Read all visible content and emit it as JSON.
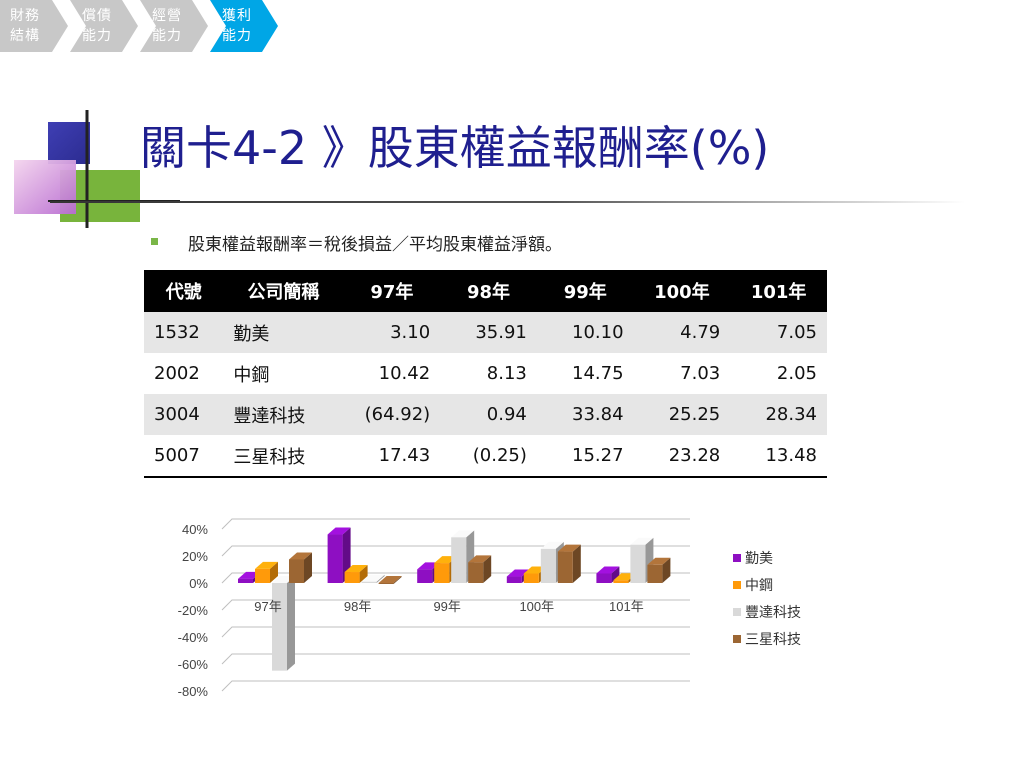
{
  "nav": {
    "crumbs": [
      {
        "line1": "財務",
        "line2": "結構",
        "active": false
      },
      {
        "line1": "償債",
        "line2": "能力",
        "active": false
      },
      {
        "line1": "經營",
        "line2": "能力",
        "active": false
      },
      {
        "line1": "獲利",
        "line2": "能力",
        "active": true
      }
    ],
    "inactive_color": "#c8c8c8",
    "active_color": "#00a6e6"
  },
  "title": "關卡4-2 》股東權益報酬率(%)",
  "bullet": "股東權益報酬率＝稅後損益／平均股東權益淨額。",
  "table": {
    "headers": [
      "代號",
      "公司簡稱",
      "97年",
      "98年",
      "99年",
      "100年",
      "101年"
    ],
    "rows": [
      [
        "1532",
        "勤美",
        "3.10",
        "35.91",
        "10.10",
        "4.79",
        "7.05"
      ],
      [
        "2002",
        "中鋼",
        "10.42",
        "8.13",
        "14.75",
        "7.03",
        "2.05"
      ],
      [
        "3004",
        "豐達科技",
        "(64.92)",
        "0.94",
        "33.84",
        "25.25",
        "28.34"
      ],
      [
        "5007",
        "三星科技",
        "17.43",
        "(0.25)",
        "15.27",
        "23.28",
        "13.48"
      ]
    ]
  },
  "chart_data": {
    "type": "bar",
    "style": "3d-clustered-column",
    "categories": [
      "97年",
      "98年",
      "99年",
      "100年",
      "101年"
    ],
    "series": [
      {
        "name": "勤美",
        "values": [
          3.1,
          35.91,
          10.1,
          4.79,
          7.05
        ],
        "color": "#8e0fc2"
      },
      {
        "name": "中鋼",
        "values": [
          10.42,
          8.13,
          14.75,
          7.03,
          2.05
        ],
        "color": "#ff9a0a"
      },
      {
        "name": "豐達科技",
        "values": [
          -64.92,
          0.94,
          33.84,
          25.25,
          28.34
        ],
        "color": "#d9d9d9"
      },
      {
        "name": "三星科技",
        "values": [
          17.43,
          -0.25,
          15.27,
          23.28,
          13.48
        ],
        "color": "#9c6633"
      }
    ],
    "yticks": [
      "40%",
      "20%",
      "0%",
      "-20%",
      "-40%",
      "-60%",
      "-80%"
    ],
    "ylim": [
      -80,
      40
    ],
    "legend": "right",
    "grid": true
  }
}
